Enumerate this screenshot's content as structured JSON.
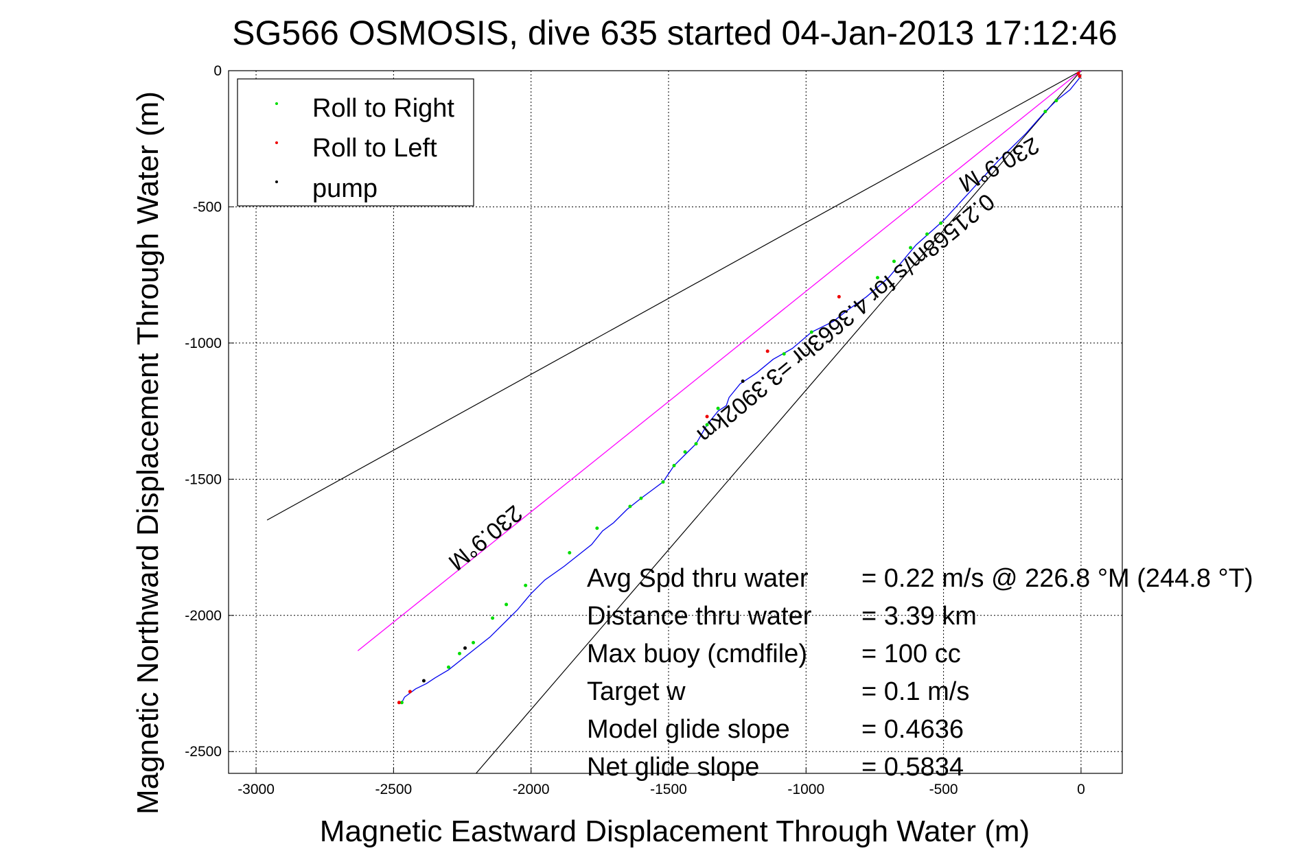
{
  "chart_data": {
    "type": "line",
    "title": "SG566 OSMOSIS, dive 635 started 04-Jan-2013 17:12:46",
    "xlabel": "Magnetic Eastward Displacement Through Water (m)",
    "ylabel": "Magnetic Northward Displacement Through Water (m)",
    "xlim": [
      -3100,
      150
    ],
    "ylim": [
      -2580,
      0
    ],
    "xticks": [
      -3000,
      -2500,
      -2000,
      -1500,
      -1000,
      -500,
      0
    ],
    "yticks": [
      0,
      -500,
      -1000,
      -1500,
      -2000,
      -2500
    ],
    "grid": true,
    "legend_position": "top-left",
    "legend": [
      {
        "label": "Roll to Right",
        "color": "#00dd00"
      },
      {
        "label": "Roll to Left",
        "color": "#ee0000"
      },
      {
        "label": "pump",
        "color": "#000000"
      }
    ],
    "series": [
      {
        "color": "#0000ee",
        "x": [
          0,
          -40,
          -90,
          -130,
          -200,
          -300,
          -400,
          -500,
          -600,
          -700,
          -780,
          -850,
          -900,
          -980,
          -1050,
          -1120,
          -1180,
          -1240,
          -1280,
          -1290,
          -1320,
          -1360,
          -1400,
          -1440,
          -1480,
          -1520,
          -1560,
          -1600,
          -1650,
          -1700,
          -1740,
          -1780,
          -1830,
          -1880,
          -1950,
          -2000,
          -2050,
          -2090,
          -2150,
          -2200,
          -2250,
          -2300,
          -2350,
          -2380,
          -2420,
          -2460,
          -2470
        ],
        "y": [
          -20,
          -70,
          -110,
          -150,
          -230,
          -330,
          -440,
          -550,
          -640,
          -760,
          -830,
          -880,
          -920,
          -960,
          -1020,
          -1060,
          -1110,
          -1150,
          -1200,
          -1230,
          -1250,
          -1300,
          -1370,
          -1410,
          -1450,
          -1510,
          -1540,
          -1570,
          -1610,
          -1660,
          -1690,
          -1740,
          -1780,
          -1820,
          -1870,
          -1920,
          -1980,
          -2020,
          -2080,
          -2120,
          -2160,
          -2200,
          -2230,
          -2250,
          -2270,
          -2300,
          -2320
        ]
      },
      {
        "color": "#ff00ff",
        "x": [
          0,
          -2630
        ],
        "y": [
          0,
          -2130
        ]
      }
    ],
    "points": {
      "green": {
        "x": [
          -90,
          -130,
          -510,
          -560,
          -620,
          -680,
          -740,
          -980,
          -1080,
          -1320,
          -1360,
          -1400,
          -1440,
          -1480,
          -1520,
          -1600,
          -1640,
          -1760,
          -1860,
          -2020,
          -2090,
          -2140,
          -2210,
          -2260,
          -2300,
          -2470
        ],
        "y": [
          -110,
          -150,
          -560,
          -600,
          -650,
          -700,
          -760,
          -960,
          -1040,
          -1240,
          -1300,
          -1370,
          -1400,
          -1450,
          -1510,
          -1570,
          -1600,
          -1680,
          -1770,
          -1890,
          -1960,
          -2010,
          -2100,
          -2140,
          -2190,
          -2320
        ]
      },
      "red": {
        "x": [
          -10,
          -5,
          -880,
          -1140,
          -1360,
          -2440,
          -2480
        ],
        "y": [
          -10,
          -20,
          -830,
          -1030,
          -1270,
          -2280,
          -2320
        ]
      },
      "black": {
        "x": [
          -1230,
          -2240,
          -2390
        ],
        "y": [
          -1140,
          -2120,
          -2240
        ]
      }
    },
    "reference_lines": [
      {
        "x": [
          0,
          -2960
        ],
        "y": [
          0,
          -1650
        ],
        "color": "#000000"
      },
      {
        "x": [
          0,
          -2200
        ],
        "y": [
          0,
          -2580
        ],
        "color": "#000000"
      }
    ],
    "annotations": {
      "upper_heading": "230.9°M",
      "lower_heading": "230.9°M",
      "speed_line": "0.21568m/s for 4.3663hr =3.3902km"
    },
    "stats": [
      {
        "label": "Avg Spd thru water",
        "value": "=  0.22 m/s @ 226.8 °M (244.8 °T)"
      },
      {
        "label": "Distance thru water",
        "value": "=  3.39 km"
      },
      {
        "label": "Max buoy (cmdfile)",
        "value": "= 100 cc"
      },
      {
        "label": "Target w",
        "value": "= 0.1 m/s"
      },
      {
        "label": "Model glide slope",
        "value": "= 0.4636"
      },
      {
        "label": "Net glide slope",
        "value": "= 0.5834"
      }
    ]
  }
}
